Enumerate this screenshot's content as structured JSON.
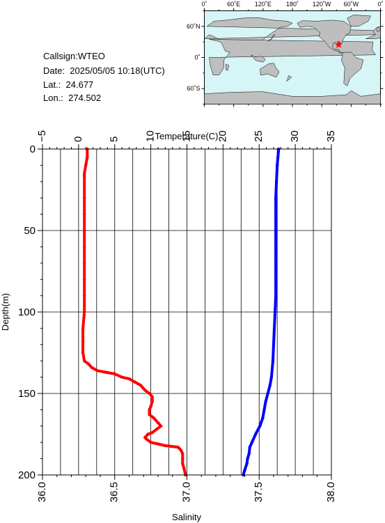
{
  "info": {
    "callsign": "Callsign:WTEO",
    "date": "Date:  2025/05/05 10:18(UTC)",
    "lat": "Lat.:  24.677",
    "lon": "Lon.:  274.502"
  },
  "map": {
    "top_labels": [
      "0˚",
      "60˚E",
      "120˚E",
      "180˚",
      "120˚W",
      "60˚W",
      "0˚"
    ],
    "left_labels": [
      "60˚N",
      "0˚",
      "60˚S"
    ],
    "ocean_color": "#d6f5f7",
    "land_color": "#bebebe",
    "marker_color": "#ff0000",
    "marker": {
      "lat": 24.677,
      "lon": 274.502
    }
  },
  "chart_data": [
    {
      "type": "line",
      "title": "",
      "xlabel": "Temperature(C)",
      "xlim": [
        -5,
        35
      ],
      "xticks": [
        "−5",
        "0",
        "5",
        "10",
        "15",
        "20",
        "25",
        "30",
        "35"
      ],
      "ylabel": "Depth(m)",
      "ylim": [
        200,
        0
      ],
      "yticks": [
        "0",
        "50",
        "100",
        "150",
        "200"
      ],
      "grid": true,
      "series": [
        {
          "color": "#0000ff",
          "x": [
            27.7,
            27.6,
            27.5,
            27.4,
            27.3,
            27.3,
            27.3,
            27.3,
            27.3,
            27.3,
            27.3,
            27.2,
            27.1,
            27.0,
            26.9,
            26.7,
            26.5,
            26.2,
            25.9,
            25.7,
            25.5,
            25.1,
            24.5,
            24.0,
            23.7,
            23.6,
            23.4,
            23.3,
            23.0,
            22.8
          ],
          "y": [
            0,
            5,
            10,
            20,
            30,
            40,
            50,
            60,
            70,
            80,
            90,
            100,
            110,
            120,
            130,
            140,
            145,
            150,
            155,
            160,
            165,
            170,
            175,
            180,
            183,
            187,
            190,
            193,
            197,
            200
          ]
        }
      ]
    },
    {
      "type": "line",
      "xlabel": "Salinity",
      "xlim": [
        36.0,
        38.0
      ],
      "xticks": [
        "36.0",
        "36.5",
        "37.0",
        "37.5",
        "38.0"
      ],
      "series": [
        {
          "color": "#ff0000",
          "x": [
            36.31,
            36.31,
            36.3,
            36.29,
            36.29,
            36.29,
            36.29,
            36.29,
            36.29,
            36.29,
            36.29,
            36.29,
            36.29,
            36.29,
            36.28,
            36.28,
            36.28,
            36.29,
            36.32,
            36.34,
            36.38,
            36.44,
            36.5,
            36.55,
            36.6,
            36.64,
            36.68,
            36.71,
            36.74,
            36.76,
            36.76,
            36.75,
            36.74,
            36.74,
            36.77,
            36.8,
            36.82,
            36.79,
            36.76,
            36.73,
            36.71,
            36.72,
            36.75,
            36.8,
            36.85,
            36.94,
            36.95,
            36.96,
            36.97,
            36.97,
            36.97,
            36.98,
            36.99
          ],
          "y": [
            0,
            5,
            10,
            15,
            16,
            17,
            30,
            40,
            50,
            60,
            70,
            80,
            90,
            100,
            110,
            118,
            125,
            130,
            132,
            134,
            136,
            137,
            138,
            140,
            141,
            143,
            145,
            148,
            150,
            152,
            155,
            158,
            160,
            163,
            165,
            168,
            170,
            172,
            174,
            175,
            177,
            178,
            180,
            181,
            182,
            183,
            184,
            185,
            187,
            190,
            193,
            196,
            200
          ]
        }
      ]
    }
  ]
}
